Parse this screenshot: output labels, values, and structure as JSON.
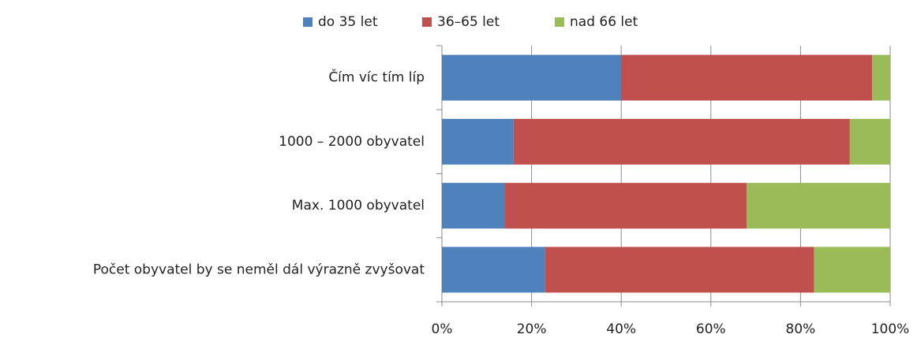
{
  "chart_data": {
    "type": "stacked_barh",
    "categories": [
      "Čím víc tím líp",
      "1000 – 2000 obyvatel",
      "Max. 1000 obyvatel",
      "Počet obyvatel by se neměl dál výrazně zvyšovat"
    ],
    "series": [
      {
        "name": "do 35 let",
        "color": "#4f81bd",
        "values": [
          40,
          16,
          14,
          23
        ]
      },
      {
        "name": "36–65 let",
        "color": "#c0504d",
        "values": [
          56,
          75,
          54,
          60
        ]
      },
      {
        "name": "nad 66 let",
        "color": "#9bbb59",
        "values": [
          4,
          9,
          32,
          17
        ]
      }
    ],
    "xlim": [
      0,
      100
    ],
    "xticks": [
      {
        "value": 0,
        "label": "0%"
      },
      {
        "value": 20,
        "label": "20%"
      },
      {
        "value": 40,
        "label": "40%"
      },
      {
        "value": 60,
        "label": "60%"
      },
      {
        "value": 80,
        "label": "80%"
      },
      {
        "value": 100,
        "label": "100%"
      }
    ],
    "grid": true,
    "legend": "top"
  }
}
